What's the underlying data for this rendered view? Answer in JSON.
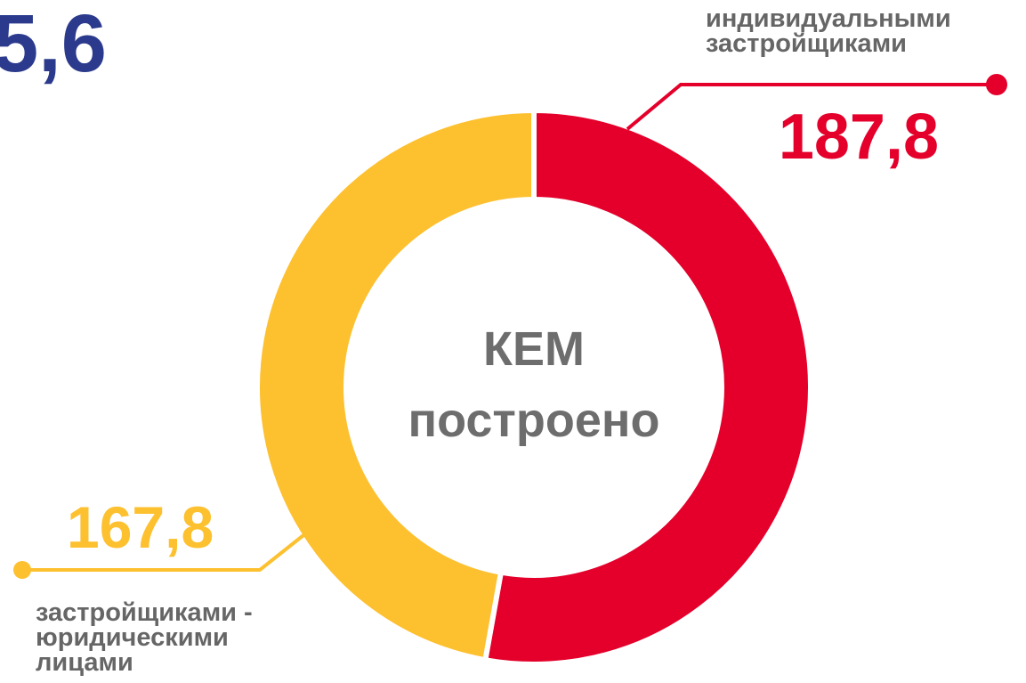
{
  "chart_data": {
    "type": "donut",
    "title": "КЕМ\nпостроено",
    "annotations": [
      "5,6"
    ],
    "categories": [
      "индивидуальными\nзастройщиками",
      "застройщиками -\nюридическими\nлицами"
    ],
    "values": [
      187.8,
      167.8
    ],
    "value_labels": [
      "187,8",
      "167,8"
    ],
    "colors": [
      "#e4002b",
      "#fdc02f"
    ]
  }
}
